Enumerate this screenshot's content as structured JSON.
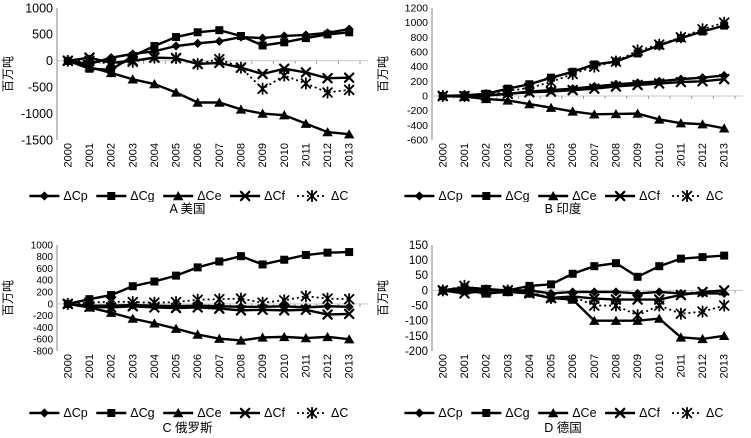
{
  "unit_label": "百万吨",
  "categories": [
    "2000",
    "2001",
    "2002",
    "2003",
    "2004",
    "2005",
    "2006",
    "2007",
    "2008",
    "2009",
    "2010",
    "2011",
    "2012",
    "2013"
  ],
  "chart_data": [
    {
      "type": "line",
      "title": "A 美国",
      "ylabel": "百万吨",
      "ylim": [
        -1500,
        1000
      ],
      "ytick_step": 500,
      "grid": "zero-line-only",
      "legend_position": "bottom",
      "categories": [
        "2000",
        "2001",
        "2002",
        "2003",
        "2004",
        "2005",
        "2006",
        "2007",
        "2008",
        "2009",
        "2010",
        "2011",
        "2012",
        "2013"
      ],
      "series": [
        {
          "name": "ΔCp",
          "marker": "diamond",
          "line": "solid",
          "values": [
            0,
            -60,
            60,
            130,
            180,
            280,
            330,
            370,
            450,
            430,
            470,
            490,
            530,
            600
          ]
        },
        {
          "name": "ΔCg",
          "marker": "square",
          "line": "solid",
          "values": [
            0,
            -150,
            -170,
            90,
            280,
            450,
            540,
            580,
            470,
            290,
            350,
            430,
            500,
            540
          ]
        },
        {
          "name": "ΔCe",
          "marker": "triangle",
          "line": "solid",
          "values": [
            0,
            -120,
            -230,
            -350,
            -440,
            -600,
            -790,
            -790,
            -920,
            -1000,
            -1030,
            -1190,
            -1350,
            -1390
          ]
        },
        {
          "name": "ΔCf",
          "marker": "x",
          "line": "solid",
          "values": [
            0,
            60,
            -40,
            0,
            60,
            50,
            -60,
            -40,
            -130,
            -250,
            -150,
            -220,
            -330,
            -320
          ]
        },
        {
          "name": "ΔC",
          "marker": "asterisk",
          "line": "dotted",
          "values": [
            0,
            0,
            -60,
            -20,
            60,
            50,
            -60,
            30,
            -130,
            -530,
            -280,
            -430,
            -600,
            -550
          ]
        }
      ]
    },
    {
      "type": "line",
      "title": "B 印度",
      "ylabel": "百万吨",
      "ylim": [
        -600,
        1200
      ],
      "ytick_step": 200,
      "grid": "zero-line-only",
      "legend_position": "bottom",
      "categories": [
        "2000",
        "2001",
        "2002",
        "2003",
        "2004",
        "2005",
        "2006",
        "2007",
        "2008",
        "2009",
        "2010",
        "2011",
        "2012",
        "2013"
      ],
      "series": [
        {
          "name": "ΔCp",
          "marker": "diamond",
          "line": "solid",
          "values": [
            0,
            0,
            10,
            30,
            60,
            80,
            100,
            130,
            160,
            180,
            200,
            230,
            250,
            280
          ]
        },
        {
          "name": "ΔCg",
          "marker": "square",
          "line": "solid",
          "values": [
            0,
            10,
            30,
            100,
            160,
            250,
            330,
            430,
            470,
            580,
            690,
            790,
            880,
            960
          ]
        },
        {
          "name": "ΔCe",
          "marker": "triangle",
          "line": "solid",
          "values": [
            0,
            -10,
            -40,
            -60,
            -110,
            -160,
            -210,
            -250,
            -245,
            -240,
            -320,
            -370,
            -385,
            -440
          ]
        },
        {
          "name": "ΔCf",
          "marker": "x",
          "line": "solid",
          "values": [
            0,
            -5,
            5,
            30,
            50,
            60,
            80,
            100,
            130,
            150,
            170,
            190,
            200,
            230
          ]
        },
        {
          "name": "ΔC",
          "marker": "asterisk",
          "line": "dotted",
          "values": [
            0,
            0,
            10,
            70,
            110,
            190,
            300,
            400,
            470,
            620,
            700,
            800,
            910,
            1000
          ]
        }
      ]
    },
    {
      "type": "line",
      "title": "C 俄罗斯",
      "ylabel": "百万吨",
      "ylim": [
        -800,
        1000
      ],
      "ytick_step": 200,
      "grid": "zero-line-only",
      "legend_position": "bottom",
      "categories": [
        "2000",
        "2001",
        "2002",
        "2003",
        "2004",
        "2005",
        "2006",
        "2007",
        "2008",
        "2009",
        "2010",
        "2011",
        "2012",
        "2013"
      ],
      "series": [
        {
          "name": "ΔCp",
          "marker": "diamond",
          "line": "solid",
          "values": [
            0,
            -30,
            -30,
            -20,
            -30,
            -40,
            -30,
            -40,
            -50,
            -50,
            -40,
            -60,
            -40,
            -50
          ]
        },
        {
          "name": "ΔCg",
          "marker": "square",
          "line": "solid",
          "values": [
            0,
            80,
            150,
            300,
            380,
            480,
            620,
            720,
            810,
            670,
            750,
            830,
            870,
            880
          ]
        },
        {
          "name": "ΔCe",
          "marker": "triangle",
          "line": "solid",
          "values": [
            0,
            -60,
            -150,
            -250,
            -330,
            -420,
            -520,
            -590,
            -620,
            -570,
            -560,
            -580,
            -560,
            -600
          ]
        },
        {
          "name": "ΔCf",
          "marker": "x",
          "line": "solid",
          "values": [
            0,
            -50,
            -60,
            -40,
            -60,
            -70,
            -60,
            -80,
            -110,
            -100,
            -110,
            -100,
            -180,
            -170
          ]
        },
        {
          "name": "ΔC",
          "marker": "asterisk",
          "line": "dotted",
          "values": [
            0,
            20,
            40,
            30,
            20,
            30,
            70,
            80,
            90,
            20,
            60,
            130,
            90,
            80
          ]
        }
      ]
    },
    {
      "type": "line",
      "title": "D 德国",
      "ylabel": "百万吨",
      "ylim": [
        -200,
        150
      ],
      "ytick_step": 50,
      "grid": "zero-line-only",
      "legend_position": "bottom",
      "categories": [
        "2000",
        "2001",
        "2002",
        "2003",
        "2004",
        "2005",
        "2006",
        "2007",
        "2008",
        "2009",
        "2010",
        "2011",
        "2012",
        "2013"
      ],
      "series": [
        {
          "name": "ΔCp",
          "marker": "diamond",
          "line": "solid",
          "values": [
            0,
            5,
            0,
            0,
            0,
            -10,
            -5,
            -5,
            -5,
            -10,
            -5,
            -10,
            -10,
            -10
          ]
        },
        {
          "name": "ΔCg",
          "marker": "square",
          "line": "solid",
          "values": [
            0,
            10,
            5,
            0,
            15,
            20,
            55,
            80,
            90,
            45,
            80,
            105,
            110,
            115
          ]
        },
        {
          "name": "ΔCe",
          "marker": "triangle",
          "line": "solid",
          "values": [
            0,
            0,
            -10,
            -5,
            -10,
            -25,
            -30,
            -100,
            -100,
            -100,
            -93,
            -155,
            -160,
            -150
          ]
        },
        {
          "name": "ΔCf",
          "marker": "x",
          "line": "solid",
          "values": [
            0,
            -10,
            0,
            0,
            -10,
            -25,
            -20,
            -27,
            -30,
            -30,
            -30,
            -15,
            -5,
            0
          ]
        },
        {
          "name": "ΔC",
          "marker": "asterisk",
          "line": "dotted",
          "values": [
            0,
            15,
            0,
            0,
            -5,
            -25,
            -20,
            -50,
            -50,
            -82,
            -50,
            -77,
            -70,
            -50
          ]
        }
      ]
    }
  ]
}
